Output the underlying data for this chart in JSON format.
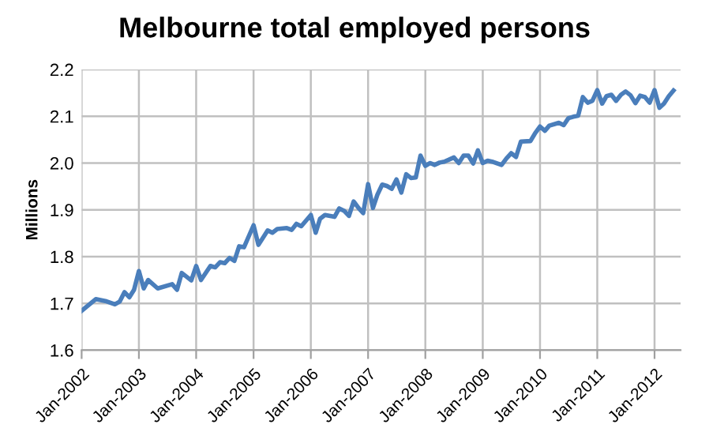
{
  "chart_data": {
    "type": "line",
    "title": "Melbourne total employed persons",
    "ylabel": "Millions",
    "x": [
      "2002-01",
      "2002-04",
      "2002-06",
      "2002-08",
      "2002-09",
      "2002-10",
      "2002-11",
      "2002-12",
      "2003-01",
      "2003-02",
      "2003-03",
      "2003-05",
      "2003-08",
      "2003-09",
      "2003-10",
      "2003-12",
      "2004-01",
      "2004-02",
      "2004-04",
      "2004-05",
      "2004-06",
      "2004-07",
      "2004-08",
      "2004-09",
      "2004-10",
      "2004-11",
      "2005-01",
      "2005-02",
      "2005-04",
      "2005-05",
      "2005-06",
      "2005-08",
      "2005-09",
      "2005-10",
      "2005-11",
      "2006-01",
      "2006-02",
      "2006-03",
      "2006-04",
      "2006-06",
      "2006-07",
      "2006-08",
      "2006-09",
      "2006-10",
      "2006-11",
      "2006-12",
      "2007-01",
      "2007-02",
      "2007-03",
      "2007-04",
      "2007-05",
      "2007-06",
      "2007-07",
      "2007-08",
      "2007-09",
      "2007-10",
      "2007-11",
      "2007-12",
      "2008-01",
      "2008-02",
      "2008-03",
      "2008-04",
      "2008-05",
      "2008-07",
      "2008-08",
      "2008-09",
      "2008-10",
      "2008-11",
      "2008-12",
      "2009-01",
      "2009-02",
      "2009-03",
      "2009-05",
      "2009-06",
      "2009-07",
      "2009-08",
      "2009-09",
      "2009-11",
      "2009-12",
      "2010-01",
      "2010-02",
      "2010-03",
      "2010-05",
      "2010-06",
      "2010-07",
      "2010-08",
      "2010-09",
      "2010-10",
      "2010-11",
      "2010-12",
      "2011-01",
      "2011-02",
      "2011-03",
      "2011-04",
      "2011-05",
      "2011-06",
      "2011-07",
      "2011-08",
      "2011-09",
      "2011-10",
      "2011-11",
      "2011-12",
      "2012-01",
      "2012-02",
      "2012-03",
      "2012-04",
      "2012-05"
    ],
    "series": [
      {
        "color": "#4a7ebb",
        "values": [
          1.684,
          1.709,
          1.705,
          1.698,
          1.704,
          1.724,
          1.713,
          1.729,
          1.769,
          1.732,
          1.75,
          1.732,
          1.741,
          1.729,
          1.765,
          1.749,
          1.78,
          1.75,
          1.78,
          1.777,
          1.788,
          1.786,
          1.797,
          1.791,
          1.822,
          1.82,
          1.867,
          1.825,
          1.856,
          1.851,
          1.859,
          1.861,
          1.857,
          1.87,
          1.865,
          1.889,
          1.851,
          1.881,
          1.889,
          1.885,
          1.903,
          1.898,
          1.887,
          1.918,
          1.904,
          1.893,
          1.955,
          1.904,
          1.932,
          1.954,
          1.951,
          1.945,
          1.965,
          1.937,
          1.976,
          1.968,
          1.969,
          2.016,
          1.994,
          2.0,
          1.996,
          2.001,
          2.003,
          2.012,
          2.0,
          2.016,
          2.016,
          1.999,
          2.027,
          2.0,
          2.005,
          2.003,
          1.996,
          2.01,
          2.021,
          2.013,
          2.046,
          2.047,
          2.064,
          2.078,
          2.069,
          2.08,
          2.086,
          2.081,
          2.096,
          2.099,
          2.101,
          2.141,
          2.129,
          2.133,
          2.156,
          2.127,
          2.143,
          2.146,
          2.133,
          2.146,
          2.153,
          2.145,
          2.128,
          2.144,
          2.141,
          2.129,
          2.156,
          2.118,
          2.127,
          2.143,
          2.155
        ]
      }
    ],
    "xlim": [
      "2002-01",
      "2012-06-15"
    ],
    "xticks": [
      {
        "value": "2002-01",
        "label": "Jan-2002"
      },
      {
        "value": "2003-01",
        "label": "Jan-2003"
      },
      {
        "value": "2004-01",
        "label": "Jan-2004"
      },
      {
        "value": "2005-01",
        "label": "Jan-2005"
      },
      {
        "value": "2006-01",
        "label": "Jan-2006"
      },
      {
        "value": "2007-01",
        "label": "Jan-2007"
      },
      {
        "value": "2008-01",
        "label": "Jan-2008"
      },
      {
        "value": "2009-01",
        "label": "Jan-2009"
      },
      {
        "value": "2010-01",
        "label": "Jan-2010"
      },
      {
        "value": "2011-01",
        "label": "Jan-2011"
      },
      {
        "value": "2012-01",
        "label": "Jan-2012"
      }
    ],
    "ylim": [
      1.6,
      2.2
    ],
    "yticks": [
      {
        "value": 1.6,
        "label": "1.6"
      },
      {
        "value": 1.7,
        "label": "1.7"
      },
      {
        "value": 1.8,
        "label": "1.8"
      },
      {
        "value": 1.9,
        "label": "1.9"
      },
      {
        "value": 2.0,
        "label": "2.0"
      },
      {
        "value": 2.1,
        "label": "2.1"
      },
      {
        "value": 2.2,
        "label": "2.2"
      }
    ],
    "grid": true,
    "marker": "none",
    "line_style": "solid"
  }
}
